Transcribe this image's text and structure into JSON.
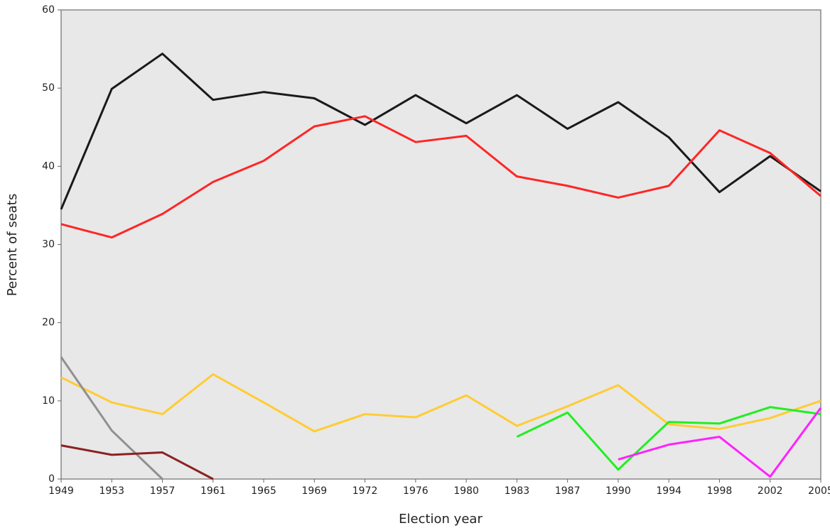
{
  "chart_data": {
    "type": "line",
    "xlabel": "Election year",
    "ylabel": "Percent of seats",
    "categories": [
      "1949",
      "1953",
      "1957",
      "1961",
      "1965",
      "1969",
      "1972",
      "1976",
      "1980",
      "1983",
      "1987",
      "1990",
      "1994",
      "1998",
      "2002",
      "2005"
    ],
    "series": [
      {
        "color": "#1a1a1a",
        "values": [
          34.5,
          49.9,
          54.4,
          48.5,
          49.5,
          48.7,
          45.3,
          49.1,
          45.5,
          49.1,
          44.8,
          48.2,
          43.7,
          36.7,
          41.3,
          36.8
        ]
      },
      {
        "color": "#ff2626",
        "values": [
          32.6,
          30.9,
          33.9,
          38.0,
          40.7,
          45.1,
          46.4,
          43.1,
          43.9,
          38.7,
          37.5,
          36.0,
          37.5,
          44.6,
          41.7,
          36.2
        ]
      },
      {
        "color": "#ffcc33",
        "values": [
          13.0,
          9.8,
          8.3,
          13.4,
          9.8,
          6.1,
          8.3,
          7.9,
          10.7,
          6.8,
          9.3,
          12.0,
          7.0,
          6.4,
          7.8,
          10.0
        ]
      },
      {
        "color": "#909090",
        "values": [
          15.6,
          6.2,
          0,
          null,
          null,
          null,
          null,
          null,
          null,
          null,
          null,
          null,
          null,
          null,
          null,
          null
        ]
      },
      {
        "color": "#8b2222",
        "values": [
          4.3,
          3.1,
          3.4,
          0,
          null,
          null,
          null,
          null,
          null,
          null,
          null,
          null,
          null,
          null,
          null,
          null
        ]
      },
      {
        "color": "#22ee22",
        "values": [
          null,
          null,
          null,
          null,
          null,
          null,
          null,
          null,
          null,
          5.4,
          8.5,
          1.2,
          7.3,
          7.1,
          9.2,
          8.3
        ]
      },
      {
        "color": "#ff22ff",
        "values": [
          null,
          null,
          null,
          null,
          null,
          null,
          null,
          null,
          null,
          null,
          null,
          2.5,
          4.4,
          5.4,
          0.3,
          9.1
        ]
      }
    ],
    "ylim": [
      0,
      60
    ],
    "yticks": [
      0,
      10,
      20,
      30,
      40,
      50,
      60
    ]
  }
}
